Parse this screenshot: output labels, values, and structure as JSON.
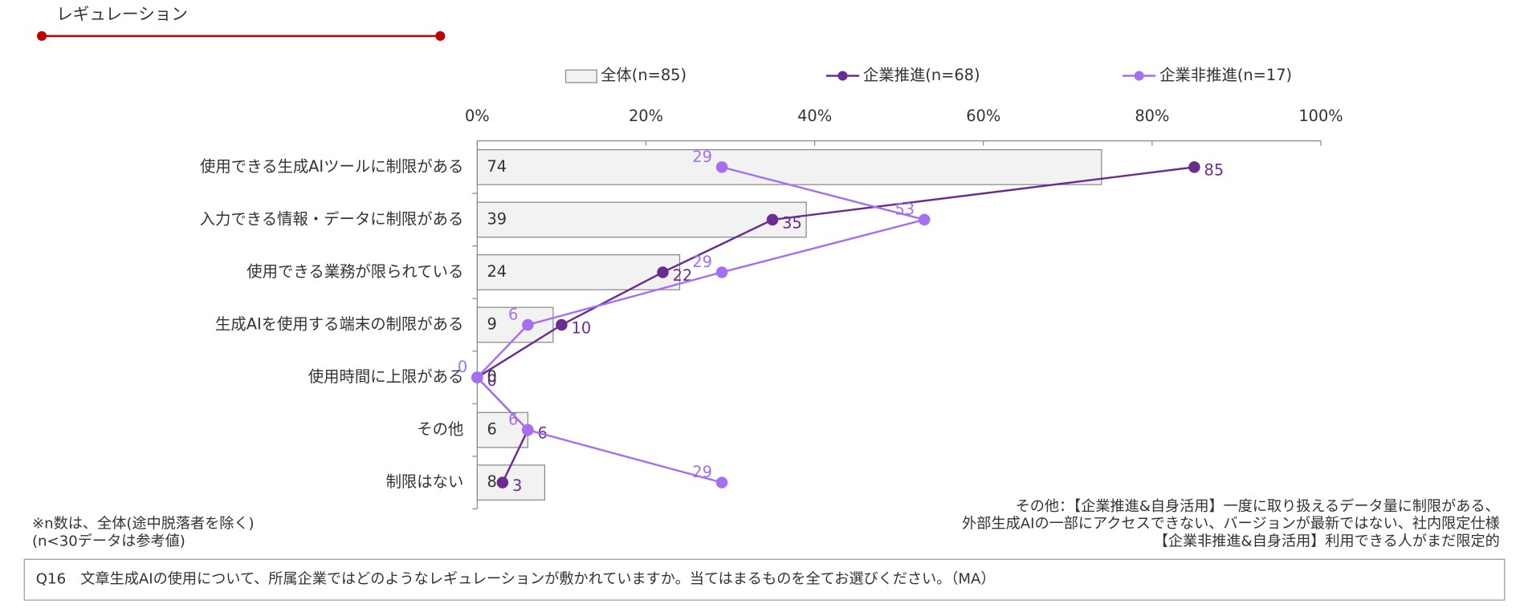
{
  "header": {
    "title": "レギュレーション"
  },
  "chart_data": {
    "type": "bar",
    "categories": [
      "使用できる生成AIツールに制限がある",
      "入力できる情報・データに制限がある",
      "使用できる業務が限られている",
      "生成AIを使用する端末の制限がある",
      "使用時間に上限がある",
      "その他",
      "制限はない"
    ],
    "series": [
      {
        "name": "全体(n=85)",
        "type": "bar",
        "color": "#f2f2f2",
        "values": [
          74,
          39,
          24,
          9,
          0,
          6,
          8
        ]
      },
      {
        "name": "企業推進(n=68)",
        "type": "line",
        "color": "#6a2c91",
        "values": [
          85,
          35,
          22,
          10,
          0,
          6,
          3
        ]
      },
      {
        "name": "企業非推進(n=17)",
        "type": "line",
        "color": "#a56ff2",
        "values": [
          29,
          53,
          29,
          6,
          0,
          6,
          29
        ]
      }
    ],
    "xlim": [
      0,
      100
    ],
    "xticks": [
      {
        "value": 0,
        "label": "0%"
      },
      {
        "value": 20,
        "label": "20%"
      },
      {
        "value": 40,
        "label": "40%"
      },
      {
        "value": 60,
        "label": "60%"
      },
      {
        "value": 80,
        "label": "80%"
      },
      {
        "value": 100,
        "label": "100%"
      }
    ]
  },
  "notes": {
    "left": [
      "※n数は、全体(途中脱落者を除く)",
      "(n<30データは参考値)"
    ],
    "right": [
      "その他：【企業推進&自身活用】一度に取り扱えるデータ量に制限がある、",
      "外部生成AIの一部にアクセスできない、バージョンが最新ではない、社内限定仕様",
      "【企業非推進&自身活用】利用できる人がまだ限定的"
    ]
  },
  "question": "Q16　文章生成AIの使用について、所属企業ではどのようなレギュレーションが敷かれていますか。当てはまるものを全てお選びください。（MA）"
}
